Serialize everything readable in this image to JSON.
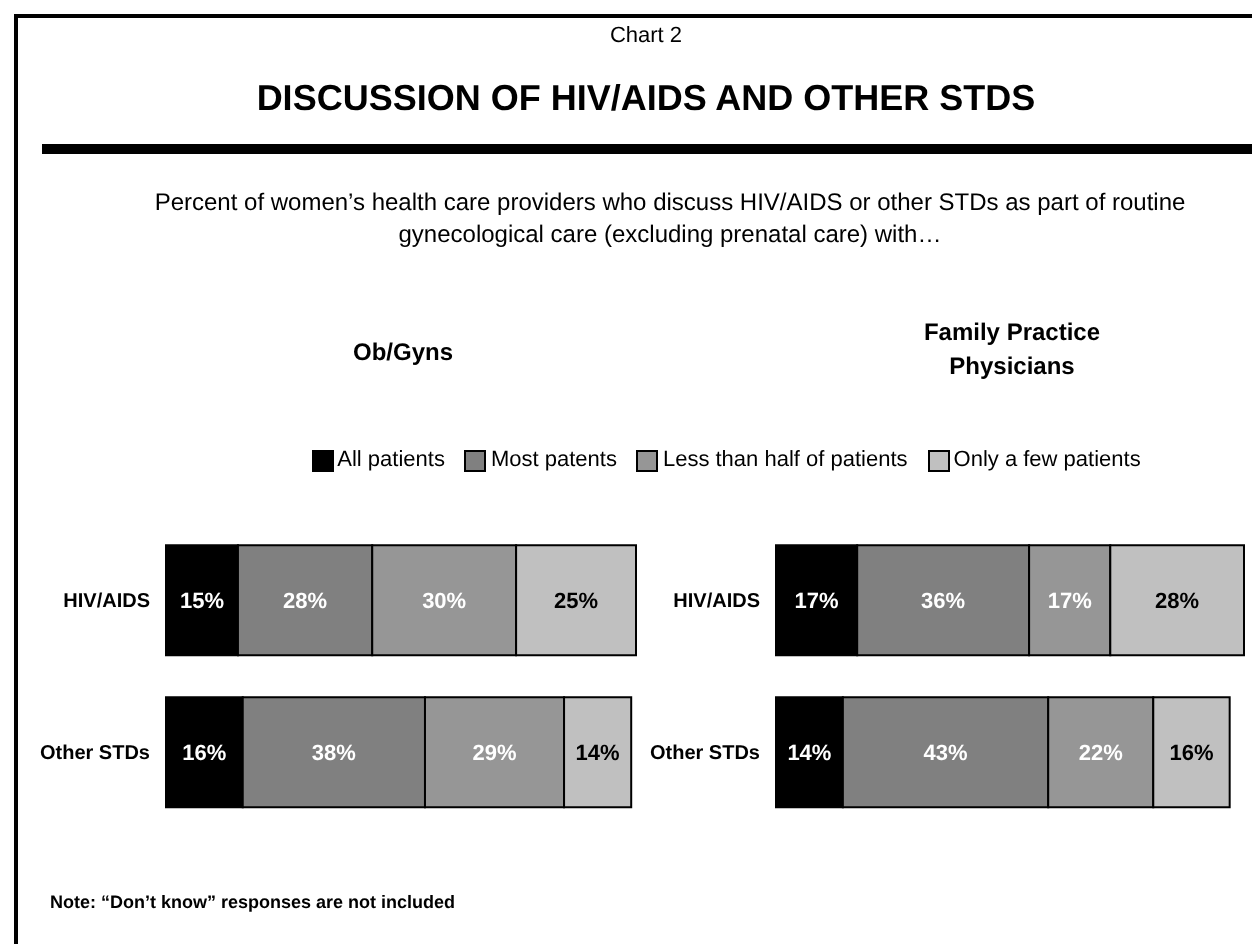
{
  "chart_data": [
    {
      "type": "bar",
      "orientation": "horizontal",
      "stacked": true,
      "title": "Ob/Gyns",
      "annotations": [
        "Chart 2",
        "DISCUSSION OF HIV/AIDS AND OTHER STDS",
        "Percent of women’s health care providers who discuss HIV/AIDS or other STDs as part of routine gynecological care (excluding prenatal care) with…",
        "Note: “Don’t know” responses are not included"
      ],
      "categories": [
        "HIV/AIDS",
        "Other STDs"
      ],
      "series": [
        {
          "name": "All patients",
          "color": "#000000",
          "values": [
            15,
            16
          ],
          "value_labels": [
            "15%",
            "16%"
          ]
        },
        {
          "name": "Most patents",
          "color": "#808080",
          "values": [
            28,
            38
          ],
          "value_labels": [
            "28%",
            "38%"
          ]
        },
        {
          "name": "Less than half of patients",
          "color": "#969696",
          "values": [
            30,
            29
          ],
          "value_labels": [
            "30%",
            "29%"
          ]
        },
        {
          "name": "Only a few patients",
          "color": "#c0c0c0",
          "values": [
            25,
            14
          ],
          "value_labels": [
            "25%",
            "14%"
          ]
        }
      ],
      "legend": "top",
      "tick_labels": "y",
      "grid": false
    },
    {
      "type": "bar",
      "orientation": "horizontal",
      "stacked": true,
      "title": "Family Practice Physicians",
      "categories": [
        "HIV/AIDS",
        "Other STDs"
      ],
      "series": [
        {
          "color": "#000000",
          "values": [
            17,
            14
          ],
          "value_labels": [
            "17%",
            "14%"
          ]
        },
        {
          "color": "#808080",
          "values": [
            36,
            43
          ],
          "value_labels": [
            "36%",
            "43%"
          ]
        },
        {
          "color": "#969696",
          "values": [
            17,
            22
          ],
          "value_labels": [
            "17%",
            "22%"
          ]
        },
        {
          "color": "#c0c0c0",
          "values": [
            28,
            16
          ],
          "value_labels": [
            "28%",
            "16%"
          ]
        }
      ],
      "tick_labels": "y",
      "grid": false
    }
  ]
}
